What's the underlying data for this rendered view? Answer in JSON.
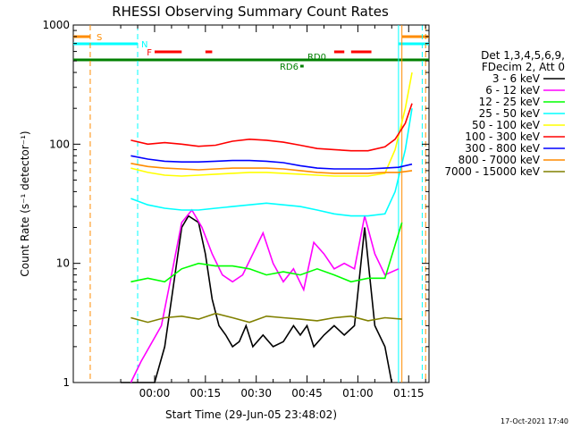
{
  "chart_data": {
    "type": "line",
    "title": "RHESSI Observing Summary Count Rates",
    "xlabel": "Start Time (29-Jun-05 23:48:02)",
    "ylabel": "Count Rate (s⁻¹ detector⁻¹)",
    "y_scale": "log",
    "ylim": [
      1,
      1000
    ],
    "xlim_minutes": [
      -12,
      93
    ],
    "x_ticks": [
      {
        "minute": 12,
        "label": "00:00"
      },
      {
        "minute": 27,
        "label": "00:15"
      },
      {
        "minute": 42,
        "label": "00:30"
      },
      {
        "minute": 57,
        "label": "00:45"
      },
      {
        "minute": 72,
        "label": "01:00"
      },
      {
        "minute": 87,
        "label": "01:15"
      }
    ],
    "y_ticks": [
      {
        "value": 1,
        "label": "1"
      },
      {
        "value": 10,
        "label": "10"
      },
      {
        "value": 100,
        "label": "100"
      },
      {
        "value": 1000,
        "label": "1000"
      }
    ],
    "legend": {
      "placement": "right",
      "header": [
        "Det 1,3,4,5,6,9,",
        "FDecim 2, Att 0"
      ]
    },
    "series": [
      {
        "name": "3 - 6 keV",
        "color": "#000000",
        "x": [
          2,
          8,
          12,
          15,
          17,
          20,
          22,
          25,
          27,
          29,
          31,
          33,
          35,
          37,
          39,
          41,
          44,
          47,
          50,
          53,
          55,
          57,
          59,
          62,
          65,
          68,
          71,
          74,
          77,
          80,
          82
        ],
        "y": [
          1,
          1,
          1,
          2,
          5,
          20,
          25,
          22,
          12,
          5,
          3,
          2.5,
          2,
          2.2,
          3,
          2,
          2.5,
          2,
          2.2,
          3,
          2.5,
          3,
          2,
          2.5,
          3,
          2.5,
          3,
          20,
          3,
          2,
          1
        ]
      },
      {
        "name": "6 - 12 keV",
        "color": "#ff00ff",
        "x": [
          5,
          8,
          14,
          17,
          20,
          23,
          26,
          29,
          32,
          35,
          38,
          41,
          44,
          47,
          50,
          53,
          56,
          59,
          62,
          65,
          68,
          71,
          74,
          77,
          80,
          84
        ],
        "y": [
          1,
          1.5,
          3,
          8,
          22,
          28,
          20,
          12,
          8,
          7,
          8,
          12,
          18,
          10,
          7,
          9,
          6,
          15,
          12,
          9,
          10,
          9,
          25,
          12,
          8,
          9
        ]
      },
      {
        "name": "12 - 25 keV",
        "color": "#00ff00",
        "x": [
          5,
          10,
          15,
          20,
          25,
          30,
          35,
          40,
          45,
          50,
          55,
          60,
          65,
          70,
          75,
          80,
          85
        ],
        "y": [
          7,
          7.5,
          7,
          9,
          10,
          9.5,
          9.5,
          9,
          8,
          8.5,
          8,
          9,
          8,
          7,
          7.5,
          7.5,
          22
        ]
      },
      {
        "name": "25 - 50 keV",
        "color": "#00ffff",
        "x": [
          5,
          10,
          15,
          20,
          25,
          30,
          35,
          40,
          45,
          50,
          55,
          60,
          65,
          70,
          75,
          80,
          83,
          86,
          88
        ],
        "y": [
          35,
          31,
          29,
          28,
          28,
          29,
          30,
          31,
          32,
          31,
          30,
          28,
          26,
          25,
          25,
          26,
          40,
          90,
          200
        ]
      },
      {
        "name": "50 - 100 keV",
        "color": "#ffff00",
        "x": [
          5,
          10,
          15,
          20,
          25,
          30,
          35,
          40,
          45,
          50,
          55,
          60,
          65,
          70,
          75,
          80,
          83,
          86,
          88
        ],
        "y": [
          63,
          58,
          55,
          54,
          55,
          56,
          57,
          58,
          58,
          57,
          56,
          55,
          54,
          54,
          54,
          57,
          90,
          200,
          400
        ]
      },
      {
        "name": "100 - 300 keV",
        "color": "#ff0000",
        "x": [
          5,
          10,
          15,
          20,
          25,
          30,
          35,
          40,
          45,
          50,
          55,
          60,
          65,
          70,
          75,
          80,
          83,
          86,
          88
        ],
        "y": [
          108,
          100,
          103,
          100,
          96,
          98,
          106,
          110,
          108,
          104,
          98,
          92,
          90,
          88,
          88,
          95,
          110,
          150,
          220
        ]
      },
      {
        "name": "300 - 800 keV",
        "color": "#0000ff",
        "x": [
          5,
          10,
          15,
          20,
          25,
          30,
          35,
          40,
          45,
          50,
          55,
          60,
          65,
          70,
          75,
          80,
          84,
          88
        ],
        "y": [
          80,
          75,
          72,
          71,
          71,
          72,
          73,
          73,
          72,
          70,
          66,
          63,
          62,
          62,
          62,
          63,
          64,
          68
        ]
      },
      {
        "name": "800 - 7000 keV",
        "color": "#ff8c00",
        "x": [
          5,
          10,
          15,
          20,
          25,
          30,
          35,
          40,
          45,
          50,
          55,
          60,
          65,
          70,
          75,
          80,
          84,
          88
        ],
        "y": [
          69,
          65,
          63,
          62,
          61,
          62,
          63,
          63,
          63,
          62,
          60,
          58,
          57,
          57,
          57,
          58,
          58,
          60
        ]
      },
      {
        "name": "7000 - 15000 keV",
        "color": "#808000",
        "x": [
          5,
          10,
          15,
          20,
          25,
          30,
          35,
          40,
          45,
          50,
          55,
          60,
          65,
          70,
          75,
          80,
          85
        ],
        "y": [
          3.5,
          3.2,
          3.5,
          3.6,
          3.4,
          3.8,
          3.5,
          3.2,
          3.6,
          3.5,
          3.4,
          3.3,
          3.5,
          3.6,
          3.3,
          3.5,
          3.4
        ]
      }
    ],
    "flags": [
      {
        "label": "S",
        "color": "#ff8c00",
        "segments": [
          [
            -12,
            -7
          ],
          [
            85,
            93
          ]
        ]
      },
      {
        "label": "N",
        "color": "#00ffff",
        "segments": [
          [
            -12,
            7
          ],
          [
            84,
            93
          ]
        ]
      },
      {
        "label": "F",
        "color": "#ff0000",
        "segments": [
          [
            12,
            20
          ],
          [
            27,
            29
          ],
          [
            65,
            68
          ],
          [
            70,
            76
          ]
        ]
      },
      {
        "label": "RD0",
        "color": "#008000",
        "segments": [
          [
            -12,
            93
          ]
        ]
      },
      {
        "label": "RD6",
        "color": "#008000",
        "segments": [
          [
            55,
            56
          ]
        ]
      }
    ],
    "vertical_markers": [
      {
        "minute": -7,
        "color": "#ff8c00",
        "style": "dashed"
      },
      {
        "minute": 7,
        "color": "#00ffff",
        "style": "dashed"
      },
      {
        "minute": 84,
        "color": "#00ffff",
        "style": "solid"
      },
      {
        "minute": 85,
        "color": "#ff8c00",
        "style": "solid"
      },
      {
        "minute": 91,
        "color": "#00ffff",
        "style": "dashed"
      },
      {
        "minute": 92,
        "color": "#ff8c00",
        "style": "dashed"
      }
    ],
    "grid": false,
    "timestamp": "17-Oct-2021 17:40"
  }
}
